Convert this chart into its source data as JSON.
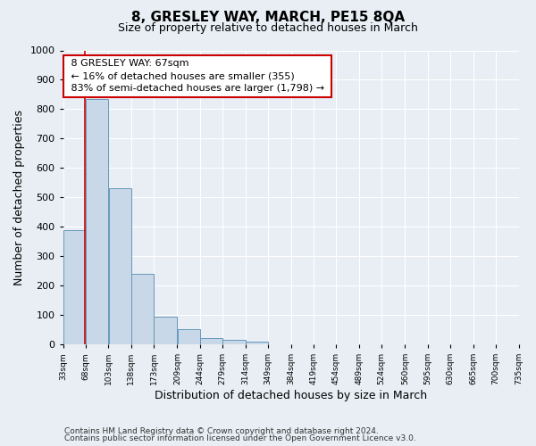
{
  "title": "8, GRESLEY WAY, MARCH, PE15 8QA",
  "subtitle": "Size of property relative to detached houses in March",
  "xlabel": "Distribution of detached houses by size in March",
  "ylabel": "Number of detached properties",
  "bar_color": "#c8d8e8",
  "bar_edge_color": "#6699bb",
  "bg_color": "#e8eef4",
  "grid_color": "#ffffff",
  "vline_x": 67,
  "vline_color": "#cc0000",
  "annotation_title": "8 GRESLEY WAY: 67sqm",
  "annotation_line1": "← 16% of detached houses are smaller (355)",
  "annotation_line2": "83% of semi-detached houses are larger (1,798) →",
  "annotation_box_color": "#ffffff",
  "annotation_box_edge": "#cc0000",
  "bin_edges": [
    33,
    68,
    103,
    138,
    173,
    209,
    244,
    279,
    314,
    349,
    384,
    419,
    454,
    489,
    524,
    560,
    595,
    630,
    665,
    700,
    735
  ],
  "bar_heights": [
    390,
    835,
    530,
    240,
    95,
    52,
    20,
    15,
    10,
    0,
    0,
    0,
    0,
    0,
    0,
    0,
    0,
    0,
    0,
    0
  ],
  "ylim": [
    0,
    1000
  ],
  "yticks": [
    0,
    100,
    200,
    300,
    400,
    500,
    600,
    700,
    800,
    900,
    1000
  ],
  "footer1": "Contains HM Land Registry data © Crown copyright and database right 2024.",
  "footer2": "Contains public sector information licensed under the Open Government Licence v3.0."
}
